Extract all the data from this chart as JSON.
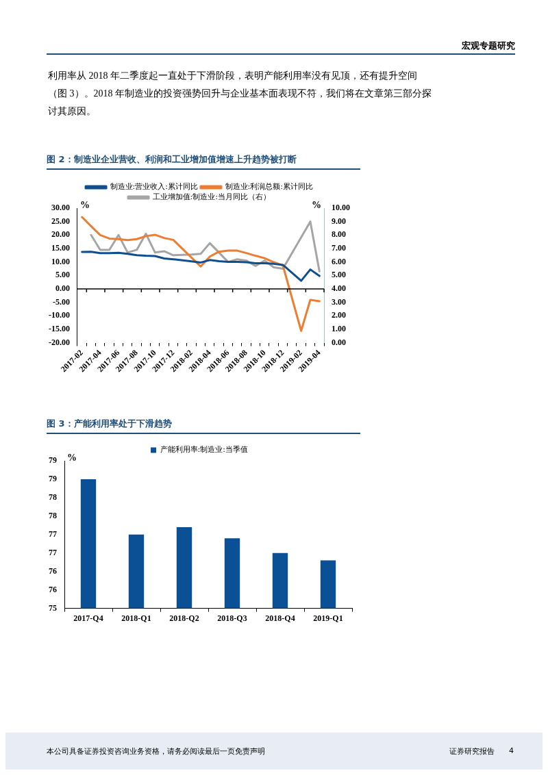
{
  "chart_data": [
    {
      "type": "line",
      "title": "图 2：制造业企业营收、利润和工业增加值增速上升趋势被打断",
      "annotations": [
        "宏观专题研究",
        "利用率从 2018 年二季度起一直处于下滑阶段，表明产能利用率没有见顶，还有提升空间（图 3）。2018 年制造业的投资强势回升与企业基本面表现不符，我们将在文章第三部分探讨其原因。"
      ],
      "ylabel": "%",
      "y2label": "%",
      "categories": [
        "2017-02",
        null,
        "2017-04",
        null,
        "2017-06",
        null,
        "2017-08",
        null,
        "2017-10",
        null,
        "2017-12",
        null,
        "2018-02",
        null,
        "2018-04",
        null,
        "2018-06",
        null,
        "2018-08",
        null,
        "2018-10",
        null,
        "2018-12",
        null,
        "2019-02",
        null,
        "2019-04"
      ],
      "series": [
        {
          "name": "制造业:营业收入:累计同比",
          "color": "#0e4f8f",
          "values": [
            13.7,
            13.8,
            13.3,
            13.3,
            13.4,
            13.0,
            12.5,
            12.3,
            12.2,
            11.3,
            11.0,
            null,
            10.2,
            9.8,
            10.7,
            10.3,
            10.0,
            10.0,
            9.9,
            9.5,
            9.5,
            9.3,
            8.9,
            null,
            3.0,
            7.2,
            4.8
          ]
        },
        {
          "name": "制造业:利润总额:累计同比",
          "color": "#ed7d31",
          "values": [
            26.7,
            23.3,
            20.0,
            18.7,
            18.5,
            18.1,
            18.5,
            19.6,
            20.1,
            18.9,
            18.2,
            null,
            11.6,
            8.3,
            12.0,
            13.8,
            14.2,
            14.2,
            13.3,
            12.3,
            11.4,
            9.9,
            8.7,
            null,
            -15.6,
            -4.1,
            -4.6
          ]
        },
        {
          "name": "工业增加值:制造业:当月同比（右）",
          "color": "#a5a5a5",
          "axis": "y2",
          "values": [
            null,
            8.0,
            6.9,
            6.9,
            8.0,
            6.7,
            6.9,
            8.1,
            6.7,
            6.8,
            6.5,
            null,
            6.55,
            6.6,
            7.4,
            6.7,
            6.0,
            6.2,
            6.1,
            5.7,
            6.1,
            5.6,
            5.5,
            null,
            null,
            9.0,
            5.3
          ]
        }
      ],
      "ylim": [
        -20,
        30
      ],
      "yticks": [
        {
          "value": -20,
          "label": "-20.00"
        },
        {
          "value": -15,
          "label": "-15.00"
        },
        {
          "value": -10,
          "label": "-10.00"
        },
        {
          "value": -5,
          "label": "-5.00"
        },
        {
          "value": 0,
          "label": "0.00"
        },
        {
          "value": 5,
          "label": "5.00"
        },
        {
          "value": 10,
          "label": "10.00"
        },
        {
          "value": 15,
          "label": "15.00"
        },
        {
          "value": 20,
          "label": "20.00"
        },
        {
          "value": 25,
          "label": "25.00"
        },
        {
          "value": 30,
          "label": "30.00"
        }
      ],
      "y2lim": [
        0,
        10
      ],
      "y2ticks": [
        {
          "value": 0,
          "label": "0.00"
        },
        {
          "value": 1,
          "label": "1.00"
        },
        {
          "value": 2,
          "label": "2.00"
        },
        {
          "value": 3,
          "label": "3.00"
        },
        {
          "value": 4,
          "label": "4.00"
        },
        {
          "value": 5,
          "label": "5.00"
        },
        {
          "value": 6,
          "label": "6.00"
        },
        {
          "value": 7,
          "label": "7.00"
        },
        {
          "value": 8,
          "label": "8.00"
        },
        {
          "value": 9,
          "label": "9.00"
        },
        {
          "value": 10,
          "label": "10.00"
        }
      ],
      "legend": "top"
    },
    {
      "type": "bar",
      "title": "图 3：产能利用率处于下滑趋势",
      "annotations": [
        "本公司具备证券投资咨询业务资格，请务必阅读最后一页免责声明",
        "证券研究报告",
        "4"
      ],
      "ylabel": "%",
      "categories": [
        "2017-Q4",
        "2018-Q1",
        "2018-Q2",
        "2018-Q3",
        "2018-Q4",
        "2019-Q1"
      ],
      "series": [
        {
          "name": "产能利用率:制造业:当季值",
          "color": "#0b4f94",
          "values": [
            78.5,
            77.0,
            77.2,
            76.9,
            76.5,
            76.3
          ]
        }
      ],
      "ylim": [
        75,
        79
      ],
      "yticks": [
        75,
        {
          "value": 75.5,
          "label": "76"
        },
        76,
        {
          "value": 76.5,
          "label": "77"
        },
        77,
        {
          "value": 77.5,
          "label": "78"
        },
        78,
        {
          "value": 78.5,
          "label": "79"
        },
        79
      ],
      "legend": "top"
    }
  ]
}
